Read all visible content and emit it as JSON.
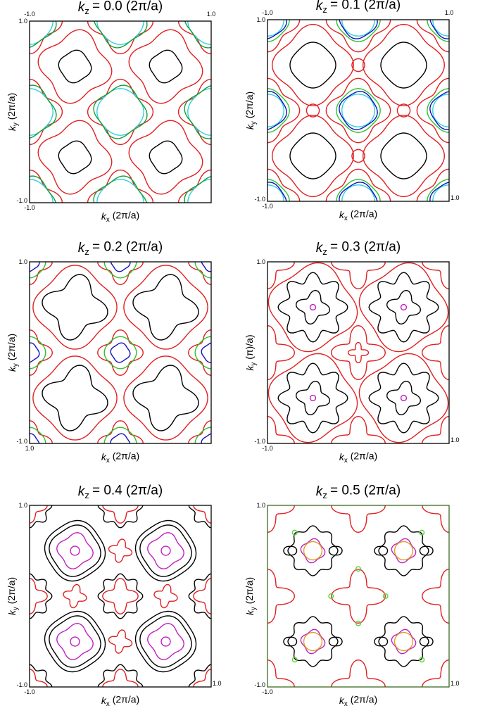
{
  "panels": [
    {
      "title": {
        "symbol": "k",
        "subscript": "z",
        "text": "= 0.0 (2π/a)"
      },
      "x_label": {
        "symbol": "k",
        "subscript": "x",
        "text": "(2π/a)"
      },
      "y_label": {
        "symbol": "k",
        "subscript": "y",
        "text": "(2π/a)"
      },
      "tick_labels": {
        "top_left": "-1.0",
        "top_right": "1.0",
        "y_top": "1.0",
        "y_bottom": "-1.0",
        "x_left": "-1.0"
      }
    },
    {
      "title": {
        "symbol": "k",
        "subscript": "z",
        "text": "= 0.1 (2π/a)"
      },
      "x_label": {
        "symbol": "k",
        "subscript": "x",
        "text": "(2π/a)"
      },
      "y_label": {
        "symbol": "k",
        "subscript": "y",
        "text": "(2π/a)"
      },
      "tick_labels": {
        "top_left": "-1.0",
        "top_right": "1.0",
        "y_top": "1.0",
        "y_bottom": "-1.0",
        "x_left": "-1.0",
        "x_right": "1.0"
      }
    },
    {
      "title": {
        "symbol": "k",
        "subscript": "z",
        "text": "= 0.2 (2π/a)"
      },
      "x_label": {
        "symbol": "k",
        "subscript": "x",
        "text": "(2π/a)"
      },
      "y_label": {
        "symbol": "k",
        "subscript": "y",
        "text": "(2π/a)"
      },
      "tick_labels": {
        "y_top": "1.0",
        "y_bottom": "-1.0",
        "x_left": "1.0"
      }
    },
    {
      "title": {
        "symbol": "k",
        "subscript": "z",
        "text": "= 0.3 (2π/a)"
      },
      "x_label": {
        "symbol": "k",
        "subscript": "x",
        "text": "(2π/a)"
      },
      "y_label": {
        "symbol": "k",
        "subscript": "y",
        "text": "(π)/a)"
      },
      "tick_labels": {
        "y_top": "1.0",
        "y_bottom": "-1.0",
        "x_left": "-1.0",
        "x_right": "1.0"
      }
    },
    {
      "title": {
        "symbol": "k",
        "subscript": "z",
        "text": "= 0.4 (2π/a)"
      },
      "x_label": {
        "symbol": "k",
        "subscript": "x",
        "text": "(2π/a)"
      },
      "y_label": {
        "symbol": "k",
        "subscript": "y",
        "text": "(2π/a)"
      },
      "tick_labels": {
        "y_top": "1.0",
        "y_bottom": "-1.0",
        "x_left": "-1.0",
        "x_right": "1.0"
      }
    },
    {
      "title": {
        "symbol": "k",
        "subscript": "z",
        "text": "= 0.5 (2π/a)"
      },
      "x_label": {
        "symbol": "k",
        "subscript": "x",
        "text": "(2π/a)"
      },
      "y_label": {
        "symbol": "k",
        "subscript": "y",
        "text": "(2π/a)"
      },
      "tick_labels": {
        "y_top": "1.0",
        "y_bottom": "-1.0",
        "x_left": "-1.0",
        "x_right": "1.0"
      }
    }
  ]
}
